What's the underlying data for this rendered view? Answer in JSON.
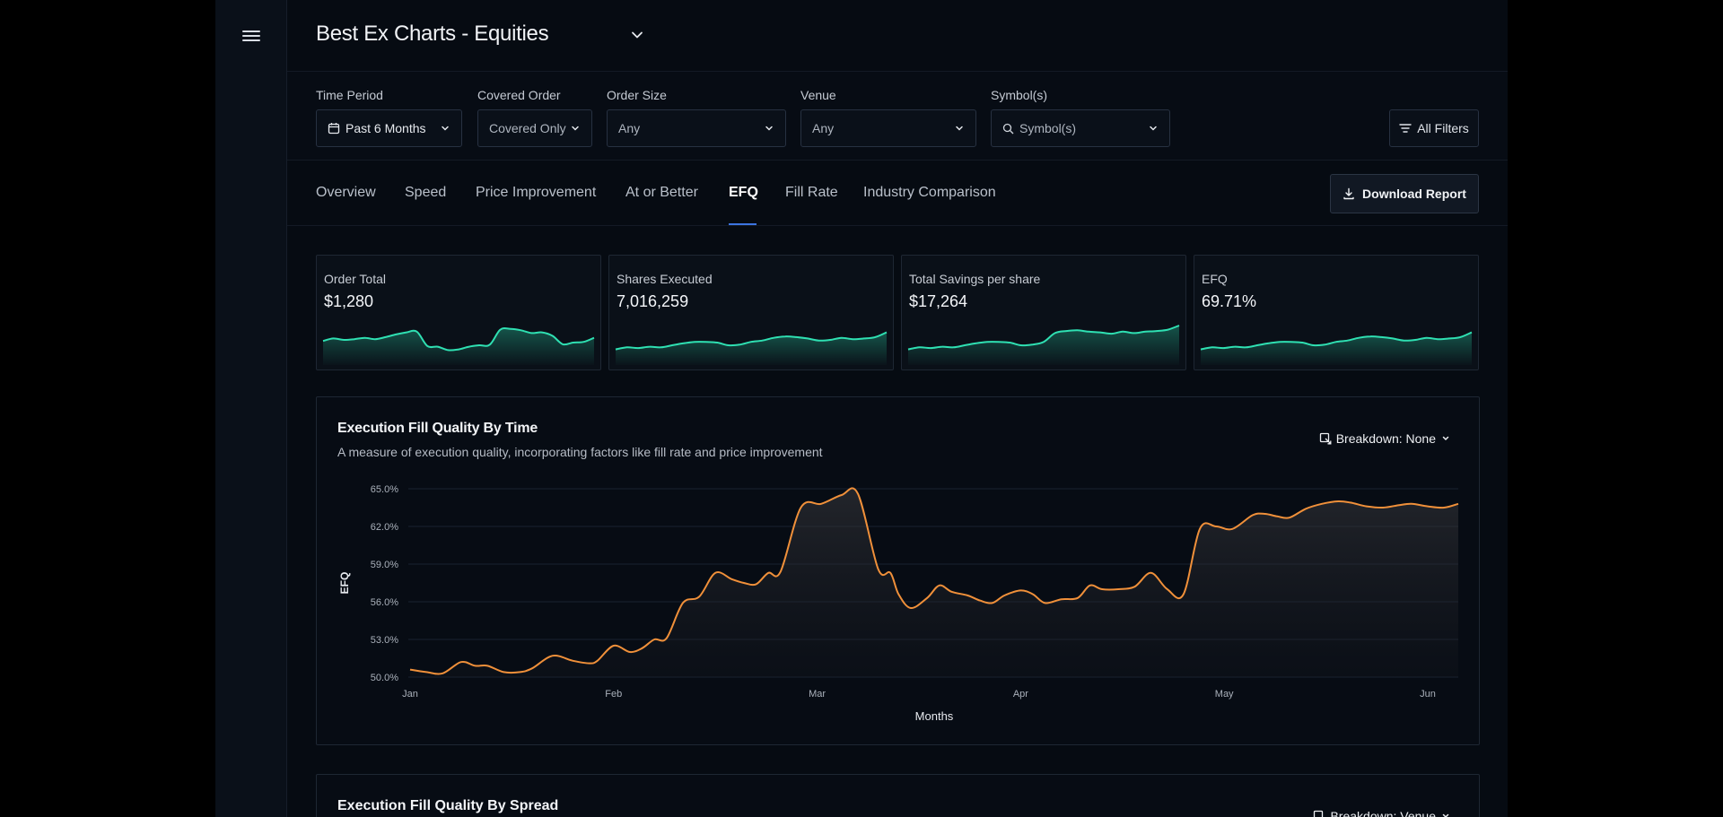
{
  "header": {
    "title": "Best Ex Charts - Equities"
  },
  "filters": [
    {
      "label": "Time Period",
      "value": "Past 6 Months",
      "icon": "calendar-icon"
    },
    {
      "label": "Covered Order",
      "value": "Covered Only"
    },
    {
      "label": "Order Size",
      "value": "Any"
    },
    {
      "label": "Venue",
      "value": "Any"
    },
    {
      "label": "Symbol(s)",
      "value": "Symbol(s)",
      "icon": "search-icon"
    }
  ],
  "all_filters_label": "All Filters",
  "tabs": [
    {
      "label": "Overview"
    },
    {
      "label": "Speed"
    },
    {
      "label": "Price Improvement"
    },
    {
      "label": "At or Better"
    },
    {
      "label": "EFQ",
      "active": true
    },
    {
      "label": "Fill Rate"
    },
    {
      "label": "Industry Comparison"
    }
  ],
  "download_label": "Download Report",
  "kpis": [
    {
      "label": "Order Total",
      "value": "$1,280",
      "trend": [
        0.55,
        0.62,
        0.58,
        0.6,
        0.64,
        0.6,
        0.66,
        0.74,
        0.8,
        0.82,
        0.4,
        0.38,
        0.28,
        0.3,
        0.38,
        0.42,
        0.44,
        0.88,
        0.9,
        0.86,
        0.78,
        0.8,
        0.7,
        0.45,
        0.5,
        0.52,
        0.64
      ]
    },
    {
      "label": "Shares Executed",
      "value": "7,016,259",
      "trend": [
        0.3,
        0.36,
        0.34,
        0.38,
        0.36,
        0.42,
        0.48,
        0.52,
        0.52,
        0.5,
        0.42,
        0.44,
        0.52,
        0.56,
        0.64,
        0.68,
        0.66,
        0.62,
        0.56,
        0.58,
        0.64,
        0.6,
        0.62,
        0.66,
        0.8
      ]
    },
    {
      "label": "Total Savings per share",
      "value": "$17,264",
      "trend": [
        0.3,
        0.36,
        0.34,
        0.38,
        0.36,
        0.42,
        0.48,
        0.52,
        0.52,
        0.5,
        0.42,
        0.44,
        0.52,
        0.78,
        0.84,
        0.86,
        0.82,
        0.8,
        0.76,
        0.82,
        0.78,
        0.82,
        0.84,
        0.88,
        1.0
      ]
    },
    {
      "label": "EFQ",
      "value": "69.71%",
      "trend": [
        0.3,
        0.36,
        0.34,
        0.38,
        0.36,
        0.42,
        0.48,
        0.52,
        0.52,
        0.5,
        0.42,
        0.44,
        0.52,
        0.56,
        0.64,
        0.68,
        0.66,
        0.62,
        0.56,
        0.58,
        0.64,
        0.6,
        0.62,
        0.66,
        0.8
      ]
    }
  ],
  "main_chart": {
    "title": "Execution Fill Quality By Time",
    "subtitle": "A measure of execution quality, incorporating factors like fill rate and price improvement",
    "breakdown_label": "Breakdown: None"
  },
  "second_chart": {
    "title": "Execution Fill Quality By Spread",
    "breakdown_label": "Breakdown: Venue"
  },
  "chart_data": {
    "type": "area",
    "title": "Execution Fill Quality By Time",
    "xlabel": "Months",
    "ylabel": "EFQ",
    "y_ticks": [
      "65.0%",
      "62.0%",
      "59.0%",
      "56.0%",
      "53.0%",
      "50.0%"
    ],
    "y_tick_values": [
      65,
      62,
      59,
      56,
      53,
      50
    ],
    "x_ticks": [
      "Jan",
      "Feb",
      "Mar",
      "Apr",
      "May",
      "Jun"
    ],
    "x_tick_values": [
      0,
      1,
      2,
      3,
      4,
      5
    ],
    "ylim": [
      50,
      65
    ],
    "xlim": [
      0,
      5.15
    ],
    "grid": true,
    "color": "#f0903a",
    "x": [
      0,
      0.08,
      0.16,
      0.25,
      0.32,
      0.38,
      0.46,
      0.54,
      0.6,
      0.7,
      0.8,
      0.88,
      0.92,
      1.0,
      1.08,
      1.14,
      1.2,
      1.26,
      1.34,
      1.42,
      1.5,
      1.58,
      1.64,
      1.7,
      1.76,
      1.82,
      1.92,
      2.02,
      2.12,
      2.2,
      2.3,
      2.36,
      2.4,
      2.46,
      2.54,
      2.6,
      2.66,
      2.74,
      2.8,
      2.86,
      2.92,
      3.0,
      3.06,
      3.12,
      3.2,
      3.28,
      3.34,
      3.4,
      3.48,
      3.56,
      3.64,
      3.72,
      3.8,
      3.88,
      3.96,
      4.04,
      4.14,
      4.2,
      4.26,
      4.32,
      4.4,
      4.48,
      4.56,
      4.62,
      4.7,
      4.78,
      4.86,
      4.92,
      5.0,
      5.08,
      5.15
    ],
    "y": [
      50.6,
      50.4,
      50.3,
      51.2,
      50.9,
      50.9,
      50.4,
      50.4,
      50.7,
      51.7,
      51.3,
      51.1,
      51.3,
      52.5,
      52.0,
      52.3,
      53.0,
      53.1,
      55.9,
      56.4,
      58.3,
      57.8,
      57.5,
      57.4,
      58.3,
      58.4,
      63.5,
      63.8,
      64.5,
      64.6,
      58.6,
      58.3,
      56.6,
      55.5,
      56.3,
      57.3,
      56.8,
      56.5,
      56.1,
      55.9,
      56.5,
      56.9,
      56.6,
      55.9,
      56.2,
      56.3,
      57.3,
      57.0,
      57.0,
      57.2,
      58.3,
      57.0,
      56.6,
      61.8,
      62.0,
      61.8,
      62.9,
      63.0,
      62.8,
      62.7,
      63.4,
      63.8,
      64.0,
      63.9,
      63.6,
      63.5,
      63.7,
      63.8,
      63.6,
      63.5,
      63.8
    ]
  }
}
